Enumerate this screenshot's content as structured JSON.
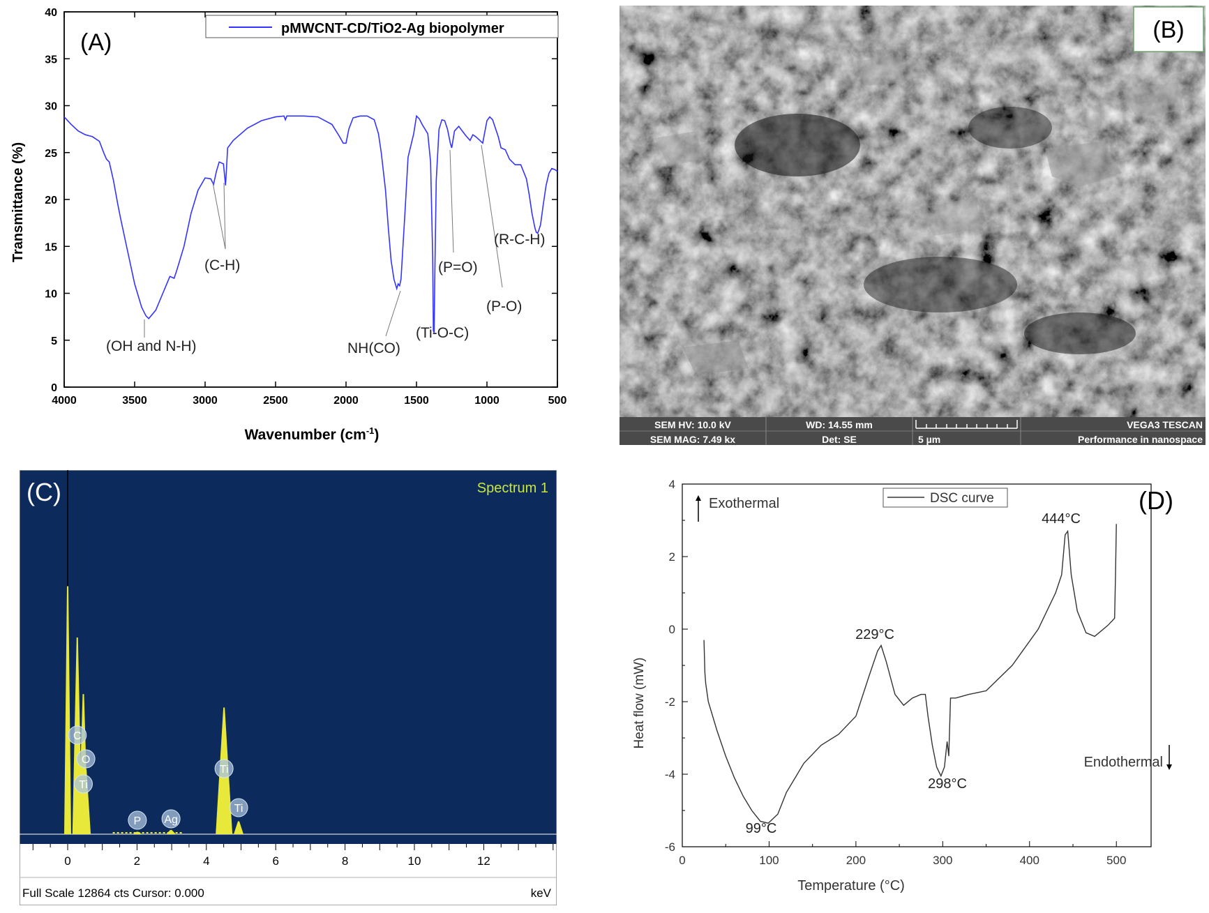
{
  "panel_a": {
    "label": "(A)",
    "legend": "pMWCNT-CD/TiO2-Ag biopolymer",
    "ylabel": "Transmittance (%)",
    "xlabel_main": "Wavenumber (cm",
    "xlabel_sup": "-1",
    "xlabel_close": ")",
    "annotations": {
      "oh": "(OH and N-H)",
      "ch": "(C-H)",
      "nhco": "NH(CO)",
      "tioc": "(Ti-O-C)",
      "po_double": "(P=O)",
      "po": "(P-O)",
      "rch": "(R-C-H)"
    },
    "colors": {
      "line": "#3333ff",
      "axis": "#000000"
    }
  },
  "panel_b": {
    "label": "(B)",
    "footer": {
      "hv": "SEM HV: 10.0 kV",
      "wd": "WD: 14.55 mm",
      "brand": "VEGA3 TESCAN",
      "mag": "SEM MAG: 7.49 kx",
      "det": "Det: SE",
      "scale": "5 µm",
      "tagline": "Performance in nanospace"
    }
  },
  "panel_c": {
    "label": "(C)",
    "title": "Spectrum 1",
    "status": "Full Scale 12864 cts Cursor: 0.000",
    "unit": "keV",
    "peak_labels": {
      "c": "C",
      "o": "O",
      "ti_l": "Ti",
      "p": "P",
      "ag": "Ag",
      "ti_ka": "Ti",
      "ti_kb": "Ti"
    },
    "colors": {
      "background": "#0c2a5c",
      "peaks": "#e8e83a",
      "title": "#c8e640"
    }
  },
  "panel_d": {
    "label": "(D)",
    "legend": "DSC curve",
    "ylabel": "Heat flow (mW)",
    "xlabel": "Temperature (°C)",
    "exo": "Exothermal",
    "endo": "Endothermal",
    "annotations": {
      "t99": "99°C",
      "t229": "229°C",
      "t298": "298°C",
      "t444": "444°C"
    }
  },
  "chart_data": [
    {
      "id": "ftir",
      "type": "line",
      "xlim": [
        4000,
        500
      ],
      "ylim": [
        0,
        40
      ],
      "xticks": [
        4000,
        3500,
        3000,
        2500,
        2000,
        1500,
        1000,
        500
      ],
      "yticks": [
        0,
        5,
        10,
        15,
        20,
        25,
        30,
        35,
        40
      ],
      "series": [
        {
          "name": "pMWCNT-CD/TiO2-Ag biopolymer",
          "x": [
            4000,
            3950,
            3900,
            3850,
            3800,
            3750,
            3720,
            3700,
            3680,
            3650,
            3620,
            3600,
            3550,
            3500,
            3450,
            3420,
            3400,
            3350,
            3300,
            3250,
            3220,
            3200,
            3150,
            3100,
            3050,
            3000,
            2960,
            2940,
            2920,
            2900,
            2870,
            2855,
            2840,
            2800,
            2700,
            2600,
            2500,
            2440,
            2430,
            2420,
            2400,
            2300,
            2200,
            2100,
            2050,
            2020,
            2000,
            1980,
            1950,
            1900,
            1850,
            1800,
            1770,
            1750,
            1720,
            1700,
            1680,
            1660,
            1640,
            1630,
            1620,
            1610,
            1600,
            1580,
            1560,
            1520,
            1500,
            1480,
            1460,
            1420,
            1400,
            1385,
            1380,
            1375,
            1370,
            1360,
            1340,
            1320,
            1300,
            1280,
            1260,
            1250,
            1230,
            1200,
            1150,
            1120,
            1100,
            1080,
            1050,
            1030,
            1000,
            980,
            960,
            940,
            920,
            900,
            870,
            840,
            800,
            760,
            720,
            700,
            680,
            660,
            650,
            640,
            630,
            620,
            600,
            580,
            560,
            540,
            520,
            500
          ],
          "y": [
            28.8,
            28.0,
            27.3,
            26.9,
            26.7,
            26.2,
            25.0,
            24.3,
            24.0,
            22.0,
            19.5,
            18.0,
            14.5,
            11.0,
            8.5,
            7.6,
            7.3,
            8.2,
            10.0,
            11.8,
            11.6,
            12.5,
            15.0,
            18.5,
            21.0,
            22.3,
            22.2,
            21.6,
            23.0,
            24.0,
            23.8,
            21.5,
            25.5,
            26.3,
            27.6,
            28.4,
            28.8,
            28.9,
            28.5,
            28.9,
            28.9,
            28.9,
            28.8,
            28.0,
            26.8,
            26.0,
            26.0,
            27.5,
            28.7,
            28.9,
            28.9,
            28.5,
            27.0,
            25.0,
            21.0,
            17.0,
            13.5,
            11.5,
            10.5,
            11.0,
            10.8,
            11.5,
            14.0,
            19.0,
            24.5,
            27.0,
            28.9,
            28.6,
            28.0,
            27.0,
            24.0,
            14.0,
            6.0,
            5.8,
            12.0,
            22.0,
            27.5,
            28.5,
            28.4,
            27.5,
            26.0,
            25.5,
            27.3,
            27.8,
            26.8,
            26.3,
            26.9,
            26.7,
            26.3,
            26.0,
            28.4,
            28.8,
            28.5,
            27.6,
            26.7,
            25.5,
            25.3,
            24.3,
            23.7,
            23.7,
            22.2,
            20.5,
            18.5,
            17.0,
            16.5,
            16.4,
            16.8,
            17.3,
            19.5,
            21.5,
            22.8,
            23.3,
            23.2,
            23.0
          ]
        }
      ]
    },
    {
      "id": "edx",
      "type": "bar",
      "xlim": [
        -1,
        14
      ],
      "xticks": [
        0,
        2,
        4,
        6,
        8,
        10,
        12
      ],
      "ylim": [
        0,
        12864
      ],
      "peaks_kev": [
        0.0,
        0.277,
        0.452,
        0.525,
        2.01,
        2.98,
        4.51,
        4.93
      ],
      "peaks_counts": [
        9200,
        7300,
        5200,
        2400,
        90,
        160,
        4700,
        480
      ],
      "peak_elements": [
        "",
        "C",
        "Ti",
        "O",
        "P",
        "Ag",
        "Ti",
        "Ti"
      ]
    },
    {
      "id": "dsc",
      "type": "line",
      "xlim": [
        0,
        540
      ],
      "ylim": [
        -6,
        4
      ],
      "xticks": [
        0,
        100,
        200,
        300,
        400,
        500
      ],
      "yticks": [
        -6,
        -4,
        -2,
        0,
        2,
        4
      ],
      "series": [
        {
          "name": "DSC curve",
          "x": [
            25,
            26,
            27,
            30,
            40,
            50,
            60,
            70,
            80,
            90,
            99,
            110,
            120,
            140,
            160,
            180,
            200,
            215,
            225,
            229,
            235,
            245,
            255,
            265,
            275,
            280,
            283,
            288,
            293,
            298,
            302,
            305,
            307,
            309,
            315,
            330,
            350,
            380,
            410,
            430,
            437,
            441,
            444,
            448,
            455,
            465,
            475,
            490,
            498,
            499,
            500
          ],
          "y": [
            -0.3,
            -1.2,
            -1.5,
            -2.0,
            -2.8,
            -3.5,
            -4.1,
            -4.6,
            -5.0,
            -5.3,
            -5.35,
            -5.1,
            -4.5,
            -3.7,
            -3.2,
            -2.9,
            -2.4,
            -1.3,
            -0.6,
            -0.45,
            -0.9,
            -1.8,
            -2.1,
            -1.9,
            -1.8,
            -1.8,
            -2.4,
            -3.2,
            -3.8,
            -4.05,
            -3.8,
            -3.1,
            -3.5,
            -1.9,
            -1.9,
            -1.8,
            -1.7,
            -1.0,
            0.0,
            1.0,
            1.5,
            2.6,
            2.7,
            1.5,
            0.5,
            -0.1,
            -0.2,
            0.1,
            0.3,
            1.5,
            2.9
          ]
        }
      ]
    }
  ]
}
